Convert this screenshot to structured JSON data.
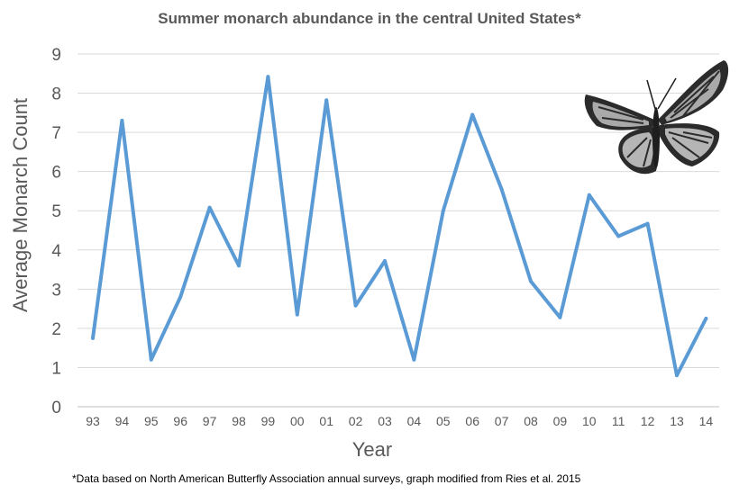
{
  "chart_data": {
    "type": "line",
    "title": "Summer monarch abundance in the central United States*",
    "xlabel": "Year",
    "ylabel": "Average Monarch Count",
    "ylim": [
      0,
      9
    ],
    "yticks": [
      0,
      1,
      2,
      3,
      4,
      5,
      6,
      7,
      8,
      9
    ],
    "grid": true,
    "categories": [
      "93",
      "94",
      "95",
      "96",
      "97",
      "98",
      "99",
      "00",
      "01",
      "02",
      "03",
      "04",
      "05",
      "06",
      "07",
      "08",
      "09",
      "10",
      "11",
      "12",
      "13",
      "14"
    ],
    "series": [
      {
        "name": "Average Monarch Count",
        "color": "#5b9bd5",
        "values": [
          1.75,
          7.3,
          1.2,
          2.8,
          5.08,
          3.6,
          8.42,
          2.35,
          7.82,
          2.58,
          3.72,
          1.2,
          5.0,
          7.45,
          5.55,
          3.2,
          2.28,
          5.4,
          4.35,
          4.67,
          0.8,
          2.25
        ]
      }
    ],
    "footnote": "*Data based on North American Butterfly Association annual surveys, graph modified from Ries et al. 2015"
  },
  "image": {
    "icon": "monarch-butterfly-icon"
  }
}
